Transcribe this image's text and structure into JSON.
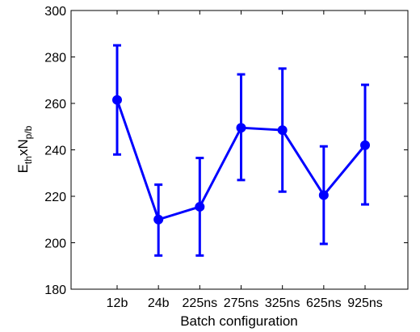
{
  "chart_data": {
    "type": "line",
    "categories": [
      "12b",
      "24b",
      "225ns",
      "275ns",
      "325ns",
      "625ns",
      "925ns"
    ],
    "series": [
      {
        "values": [
          261.5,
          210,
          215.5,
          249.5,
          248.5,
          220.5,
          242
        ],
        "error_low": [
          238,
          194.5,
          194.5,
          227,
          222,
          199.5,
          216.5
        ],
        "error_high": [
          285,
          225,
          236.5,
          272.5,
          275,
          241.5,
          268
        ]
      }
    ],
    "xlabel": "Batch configuration",
    "ylabel": {
      "base1": "E",
      "sub1": "th",
      "mid": "xN",
      "sub2": "p/b"
    },
    "ylim": [
      180,
      300
    ],
    "yticks": [
      "180",
      "200",
      "220",
      "240",
      "260",
      "280",
      "300"
    ],
    "grid": false,
    "colors": {
      "series": "#0000ff",
      "axes": "#000000"
    }
  }
}
